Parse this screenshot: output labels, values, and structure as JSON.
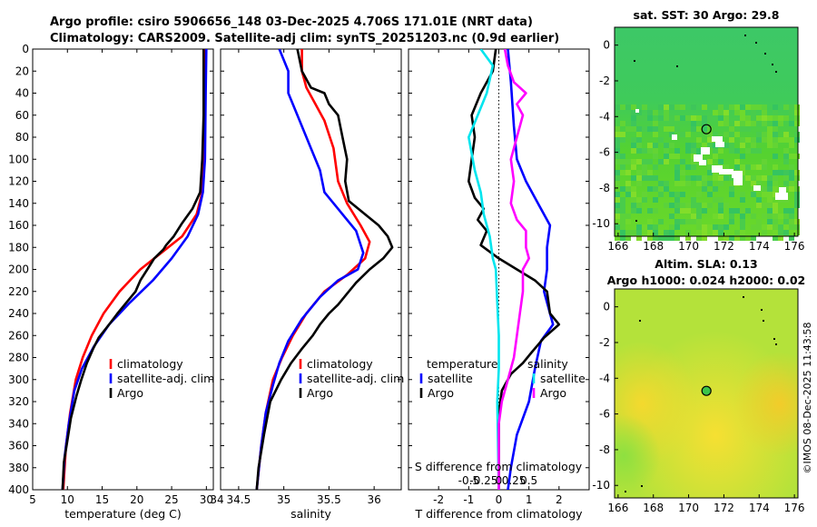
{
  "title_line1": "Argo profile: csiro 5906656_148 03-Dec-2025 4.706S 171.01E (NRT data)",
  "title_line2": "Climatology: CARS2009. Satellite-adj clim: synTS_20251203.nc (0.9d earlier)",
  "side_label": "©IMOS 08-Dec-2025 11:43:58",
  "colors": {
    "climatology": "#ff0000",
    "satellite": "#0000ff",
    "argo": "#000000",
    "sal_satellite": "#00e5ee",
    "sal_argo": "#ff00ff"
  },
  "chart_data": [
    {
      "type": "line",
      "id": "temperature",
      "xlabel": "temperature (deg C)",
      "ylabel": "",
      "xlim": [
        5,
        31
      ],
      "ylim": [
        400,
        0
      ],
      "xticks": [
        5,
        10,
        15,
        20,
        25,
        30
      ],
      "yticks": [
        0,
        20,
        40,
        60,
        80,
        100,
        120,
        140,
        160,
        180,
        200,
        220,
        240,
        260,
        280,
        300,
        320,
        340,
        360,
        380,
        400
      ],
      "legend": [
        "climatology",
        "satellite-adj. clim",
        "Argo"
      ],
      "series": [
        {
          "name": "climatology",
          "color": "#ff0000",
          "points": [
            [
              29.9,
              0
            ],
            [
              29.8,
              40
            ],
            [
              29.6,
              100
            ],
            [
              29.4,
              130
            ],
            [
              28.6,
              150
            ],
            [
              26.5,
              170
            ],
            [
              23.5,
              185
            ],
            [
              20.5,
              200
            ],
            [
              17.5,
              220
            ],
            [
              15.2,
              240
            ],
            [
              13.5,
              260
            ],
            [
              12.2,
              280
            ],
            [
              11.2,
              300
            ],
            [
              10.4,
              330
            ],
            [
              9.8,
              360
            ],
            [
              9.4,
              400
            ]
          ]
        },
        {
          "name": "satellite-adj. clim",
          "color": "#0000ff",
          "points": [
            [
              30,
              0
            ],
            [
              29.9,
              40
            ],
            [
              29.8,
              100
            ],
            [
              29.5,
              130
            ],
            [
              28.8,
              150
            ],
            [
              27.3,
              170
            ],
            [
              25,
              190
            ],
            [
              22.3,
              210
            ],
            [
              19,
              230
            ],
            [
              16,
              250
            ],
            [
              13.8,
              270
            ],
            [
              12.1,
              290
            ],
            [
              11,
              310
            ],
            [
              10.2,
              340
            ],
            [
              9.6,
              370
            ],
            [
              9.3,
              400
            ]
          ]
        },
        {
          "name": "Argo",
          "color": "#000000",
          "points": [
            [
              29.6,
              0
            ],
            [
              29.6,
              60
            ],
            [
              29.4,
              100
            ],
            [
              29.1,
              130
            ],
            [
              28,
              145
            ],
            [
              26.5,
              158
            ],
            [
              25.3,
              170
            ],
            [
              24.2,
              178
            ],
            [
              23.8,
              182
            ],
            [
              22.5,
              190
            ],
            [
              21.5,
              200
            ],
            [
              20.5,
              210
            ],
            [
              19.8,
              220
            ],
            [
              18.5,
              230
            ],
            [
              17.2,
              240
            ],
            [
              16,
              250
            ],
            [
              14.5,
              262
            ],
            [
              13.7,
              272
            ],
            [
              12.8,
              285
            ],
            [
              12,
              300
            ],
            [
              11.3,
              315
            ],
            [
              10.5,
              335
            ],
            [
              10,
              355
            ],
            [
              9.5,
              375
            ],
            [
              9.3,
              400
            ]
          ]
        }
      ]
    },
    {
      "type": "line",
      "id": "salinity",
      "xlabel": "salinity",
      "ylabel": "",
      "xlim": [
        34.3,
        36.3
      ],
      "ylim": [
        400,
        0
      ],
      "xticks": [
        34,
        34.5,
        35,
        35.5,
        36
      ],
      "yticks": [
        0,
        20,
        40,
        60,
        80,
        100,
        120,
        140,
        160,
        180,
        200,
        220,
        240,
        260,
        280,
        300,
        320,
        340,
        360,
        380,
        400
      ],
      "legend": [
        "climatology",
        "satellite-adj. clim",
        "Argo"
      ],
      "series": [
        {
          "name": "climatology",
          "color": "#ff0000",
          "points": [
            [
              35.2,
              0
            ],
            [
              35.2,
              20
            ],
            [
              35.25,
              35
            ],
            [
              35.35,
              50
            ],
            [
              35.45,
              65
            ],
            [
              35.55,
              90
            ],
            [
              35.6,
              120
            ],
            [
              35.7,
              140
            ],
            [
              35.85,
              160
            ],
            [
              35.95,
              175
            ],
            [
              35.9,
              190
            ],
            [
              35.7,
              205
            ],
            [
              35.45,
              220
            ],
            [
              35.25,
              240
            ],
            [
              35.1,
              260
            ],
            [
              34.98,
              280
            ],
            [
              34.88,
              300
            ],
            [
              34.8,
              330
            ],
            [
              34.75,
              360
            ],
            [
              34.7,
              400
            ]
          ]
        },
        {
          "name": "satellite-adj. clim",
          "color": "#0000ff",
          "points": [
            [
              34.95,
              0
            ],
            [
              35.05,
              20
            ],
            [
              35.05,
              40
            ],
            [
              35.15,
              60
            ],
            [
              35.3,
              90
            ],
            [
              35.4,
              110
            ],
            [
              35.45,
              130
            ],
            [
              35.6,
              145
            ],
            [
              35.8,
              165
            ],
            [
              35.88,
              185
            ],
            [
              35.82,
              200
            ],
            [
              35.6,
              210
            ],
            [
              35.4,
              225
            ],
            [
              35.2,
              245
            ],
            [
              35.05,
              265
            ],
            [
              34.95,
              285
            ],
            [
              34.88,
              305
            ],
            [
              34.8,
              330
            ],
            [
              34.75,
              360
            ],
            [
              34.7,
              400
            ]
          ]
        },
        {
          "name": "Argo",
          "color": "#000000",
          "points": [
            [
              35.15,
              0
            ],
            [
              35.2,
              20
            ],
            [
              35.3,
              35
            ],
            [
              35.45,
              40
            ],
            [
              35.5,
              50
            ],
            [
              35.6,
              60
            ],
            [
              35.65,
              80
            ],
            [
              35.7,
              100
            ],
            [
              35.68,
              120
            ],
            [
              35.72,
              138
            ],
            [
              35.9,
              150
            ],
            [
              36.05,
              160
            ],
            [
              36.15,
              170
            ],
            [
              36.2,
              180
            ],
            [
              36.1,
              190
            ],
            [
              35.95,
              200
            ],
            [
              35.8,
              212
            ],
            [
              35.7,
              222
            ],
            [
              35.6,
              232
            ],
            [
              35.5,
              240
            ],
            [
              35.4,
              250
            ],
            [
              35.32,
              260
            ],
            [
              35.2,
              272
            ],
            [
              35.08,
              285
            ],
            [
              34.97,
              300
            ],
            [
              34.85,
              320
            ],
            [
              34.78,
              350
            ],
            [
              34.72,
              380
            ],
            [
              34.7,
              400
            ]
          ]
        }
      ]
    },
    {
      "type": "line",
      "id": "difference",
      "xlabel": "T difference from climatology",
      "ylabel": "",
      "secondary_xlabel": "S difference from climatology",
      "xlim": [
        -3,
        3
      ],
      "ylim": [
        400,
        0
      ],
      "xticks": [
        -2,
        -1,
        0,
        1,
        2
      ],
      "xticklabels": [
        "-2",
        "-1",
        "0",
        "1",
        "2"
      ],
      "secondary_xticks": [
        -1,
        -0.5,
        0,
        0.5,
        1
      ],
      "secondary_xticklabels": [
        "-0.5",
        "-0.25",
        "0",
        "0.25",
        "0.5"
      ],
      "yticks": [
        0,
        20,
        40,
        60,
        80,
        100,
        120,
        140,
        160,
        180,
        200,
        220,
        240,
        260,
        280,
        300,
        320,
        340,
        360,
        380,
        400
      ],
      "legend_temperature": {
        "title": "temperature",
        "items": [
          "satellite",
          "Argo"
        ]
      },
      "legend_salinity": {
        "title": "salinity",
        "items": [
          "satellite",
          "Argo"
        ]
      },
      "series": [
        {
          "name": "T satellite",
          "color": "#0000ff",
          "points": [
            [
              0.3,
              0
            ],
            [
              0.4,
              30
            ],
            [
              0.5,
              70
            ],
            [
              0.6,
              100
            ],
            [
              0.9,
              120
            ],
            [
              1.3,
              140
            ],
            [
              1.7,
              160
            ],
            [
              1.6,
              180
            ],
            [
              1.6,
              200
            ],
            [
              1.5,
              220
            ],
            [
              1.8,
              250
            ],
            [
              1.4,
              265
            ],
            [
              1.2,
              290
            ],
            [
              1,
              320
            ],
            [
              0.6,
              350
            ],
            [
              0.4,
              380
            ],
            [
              0.3,
              400
            ]
          ]
        },
        {
          "name": "T Argo",
          "color": "#000000",
          "points": [
            [
              -0.1,
              0
            ],
            [
              -0.2,
              20
            ],
            [
              -0.6,
              40
            ],
            [
              -0.9,
              60
            ],
            [
              -0.8,
              80
            ],
            [
              -0.9,
              100
            ],
            [
              -1,
              120
            ],
            [
              -0.8,
              135
            ],
            [
              -0.5,
              145
            ],
            [
              -0.7,
              155
            ],
            [
              -0.4,
              165
            ],
            [
              -0.6,
              178
            ],
            [
              0,
              190
            ],
            [
              0.6,
              200
            ],
            [
              1.2,
              210
            ],
            [
              1.6,
              220
            ],
            [
              1.7,
              240
            ],
            [
              2,
              250
            ],
            [
              1.5,
              262
            ],
            [
              1.1,
              275
            ],
            [
              0.8,
              285
            ],
            [
              0.4,
              295
            ],
            [
              0.1,
              310
            ],
            [
              0,
              330
            ],
            [
              0,
              360
            ],
            [
              0,
              400
            ]
          ]
        },
        {
          "name": "S satellite",
          "color": "#00e5ee",
          "points": [
            [
              -0.6,
              0
            ],
            [
              -0.2,
              15
            ],
            [
              -0.4,
              40
            ],
            [
              -0.7,
              60
            ],
            [
              -1,
              80
            ],
            [
              -0.8,
              110
            ],
            [
              -0.6,
              130
            ],
            [
              -0.5,
              150
            ],
            [
              -0.3,
              170
            ],
            [
              -0.2,
              190
            ],
            [
              -0.1,
              200
            ],
            [
              -0.05,
              230
            ],
            [
              0,
              260
            ],
            [
              0,
              290
            ],
            [
              -0.05,
              320
            ],
            [
              0,
              400
            ]
          ]
        },
        {
          "name": "S Argo",
          "color": "#ff00ff",
          "points": [
            [
              0.2,
              0
            ],
            [
              0.3,
              15
            ],
            [
              0.5,
              30
            ],
            [
              0.9,
              40
            ],
            [
              0.6,
              50
            ],
            [
              0.8,
              60
            ],
            [
              0.6,
              80
            ],
            [
              0.4,
              100
            ],
            [
              0.5,
              120
            ],
            [
              0.4,
              140
            ],
            [
              0.6,
              155
            ],
            [
              0.9,
              165
            ],
            [
              0.9,
              180
            ],
            [
              1,
              190
            ],
            [
              0.8,
              200
            ],
            [
              0.8,
              220
            ],
            [
              0.7,
              240
            ],
            [
              0.6,
              260
            ],
            [
              0.5,
              280
            ],
            [
              0.3,
              300
            ],
            [
              0.1,
              320
            ],
            [
              0,
              340
            ],
            [
              0,
              380
            ],
            [
              0,
              400
            ]
          ]
        }
      ]
    },
    {
      "type": "heatmap",
      "id": "sst_map",
      "title": "sat. SST: 30 Argo: 29.8",
      "xlim": [
        165.8,
        176.2
      ],
      "ylim": [
        -10.7,
        1
      ],
      "xticks": [
        166,
        168,
        170,
        172,
        174,
        176
      ],
      "yticks": [
        0,
        -2,
        -4,
        -6,
        -8,
        -10
      ],
      "argo_position": [
        171.01,
        -4.706
      ]
    },
    {
      "type": "heatmap",
      "id": "sla_map",
      "title": "Altim. SLA: 0.13",
      "subtitle": "Argo h1000: 0.024 h2000: 0.02",
      "xlim": [
        165.8,
        176.2
      ],
      "ylim": [
        -10.7,
        1
      ],
      "xticks": [
        166,
        168,
        170,
        172,
        174,
        176
      ],
      "yticks": [
        0,
        -2,
        -4,
        -6,
        -8,
        -10
      ],
      "argo_position": [
        171.01,
        -4.706
      ]
    }
  ]
}
